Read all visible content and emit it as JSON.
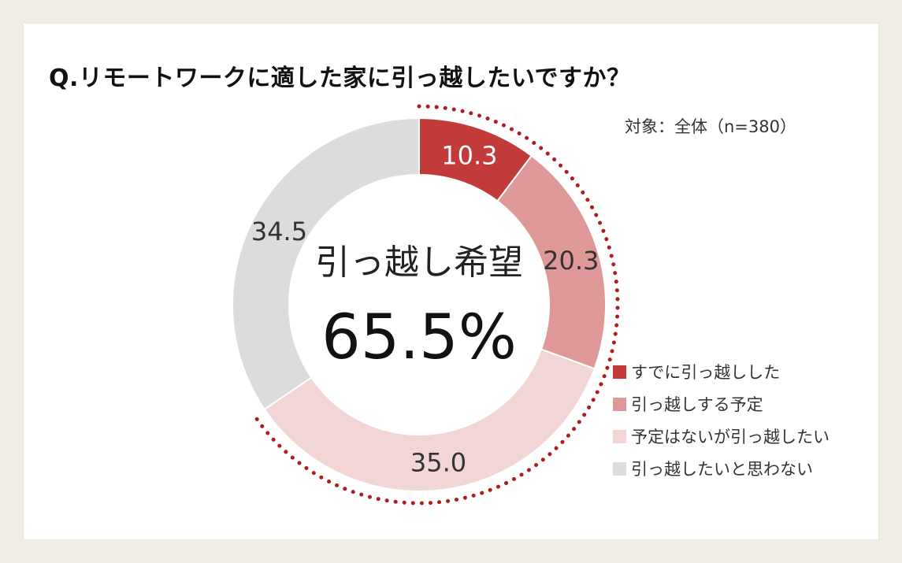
{
  "title": "Q.リモートワークに適した家に引っ越したいですか？",
  "subtitle": "対象：全体（n=380）",
  "center": {
    "label": "引っ越し希望",
    "value": "65.5%"
  },
  "chart_data": {
    "type": "pie",
    "variant": "donut",
    "unit": "%",
    "categories": [
      "すでに引っ越しした",
      "引っ越しする予定",
      "予定はないが引っ越したい",
      "引っ越したいと思わない"
    ],
    "values": [
      10.3,
      20.3,
      35.0,
      34.5
    ],
    "labels": [
      "10.3",
      "20.3",
      "35.0",
      "34.5"
    ],
    "colors": [
      "#c23a3a",
      "#de9898",
      "#f2d6d6",
      "#dcdcdc"
    ],
    "label_colors": [
      "#ffffff",
      "#333333",
      "#333333",
      "#333333"
    ],
    "start_angle": "12 o'clock",
    "direction": "clockwise",
    "highlight": "dotted red arc around first three slices",
    "highlight_color": "#b01d1d",
    "legend_position": "bottom-right"
  }
}
